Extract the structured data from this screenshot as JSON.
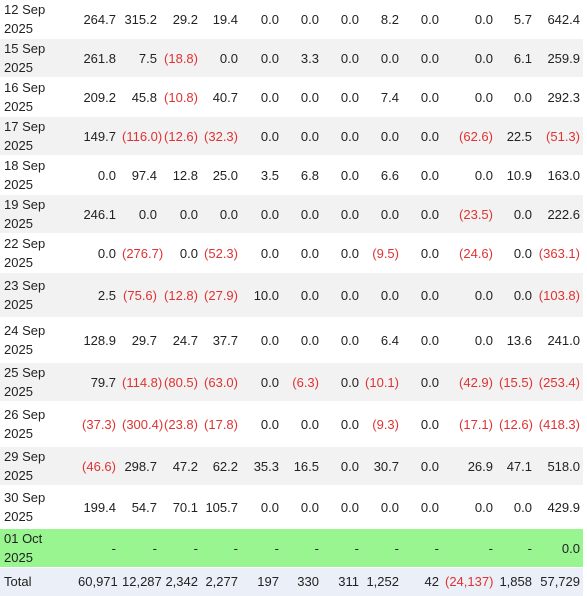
{
  "rows": [
    {
      "date": "12 Sep 2025",
      "values": [
        "264.7",
        "315.2",
        "29.2",
        "19.4",
        "0.0",
        "0.0",
        "0.0",
        "8.2",
        "0.0",
        "0.0",
        "5.7",
        "642.4"
      ]
    },
    {
      "date": "15 Sep 2025",
      "values": [
        "261.8",
        "7.5",
        "(18.8)",
        "0.0",
        "0.0",
        "3.3",
        "0.0",
        "0.0",
        "0.0",
        "0.0",
        "6.1",
        "259.9"
      ]
    },
    {
      "date": "16 Sep 2025",
      "values": [
        "209.2",
        "45.8",
        "(10.8)",
        "40.7",
        "0.0",
        "0.0",
        "0.0",
        "7.4",
        "0.0",
        "0.0",
        "0.0",
        "292.3"
      ]
    },
    {
      "date": "17 Sep 2025",
      "values": [
        "149.7",
        "(116.0)",
        "(12.6)",
        "(32.3)",
        "0.0",
        "0.0",
        "0.0",
        "0.0",
        "0.0",
        "(62.6)",
        "22.5",
        "(51.3)"
      ]
    },
    {
      "date": "18 Sep 2025",
      "values": [
        "0.0",
        "97.4",
        "12.8",
        "25.0",
        "3.5",
        "6.8",
        "0.0",
        "6.6",
        "0.0",
        "0.0",
        "10.9",
        "163.0"
      ]
    },
    {
      "date": "19 Sep 2025",
      "values": [
        "246.1",
        "0.0",
        "0.0",
        "0.0",
        "0.0",
        "0.0",
        "0.0",
        "0.0",
        "0.0",
        "(23.5)",
        "0.0",
        "222.6"
      ]
    },
    {
      "date": "22 Sep 2025",
      "values": [
        "0.0",
        "(276.7)",
        "0.0",
        "(52.3)",
        "0.0",
        "0.0",
        "0.0",
        "(9.5)",
        "0.0",
        "(24.6)",
        "0.0",
        "(363.1)"
      ]
    },
    {
      "date": "23 Sep 2025",
      "values": [
        "2.5",
        "(75.6)",
        "(12.8)",
        "(27.9)",
        "10.0",
        "0.0",
        "0.0",
        "0.0",
        "0.0",
        "0.0",
        "0.0",
        "(103.8)"
      ]
    },
    {
      "date": "24 Sep 2025",
      "values": [
        "128.9",
        "29.7",
        "24.7",
        "37.7",
        "0.0",
        "0.0",
        "0.0",
        "6.4",
        "0.0",
        "0.0",
        "13.6",
        "241.0"
      ]
    },
    {
      "date": "25 Sep 2025",
      "values": [
        "79.7",
        "(114.8)",
        "(80.5)",
        "(63.0)",
        "0.0",
        "(6.3)",
        "0.0",
        "(10.1)",
        "0.0",
        "(42.9)",
        "(15.5)",
        "(253.4)"
      ]
    },
    {
      "date": "26 Sep 2025",
      "values": [
        "(37.3)",
        "(300.4)",
        "(23.8)",
        "(17.8)",
        "0.0",
        "0.0",
        "0.0",
        "(9.3)",
        "0.0",
        "(17.1)",
        "(12.6)",
        "(418.3)"
      ]
    },
    {
      "date": "29 Sep 2025",
      "values": [
        "(46.6)",
        "298.7",
        "47.2",
        "62.2",
        "35.3",
        "16.5",
        "0.0",
        "30.7",
        "0.0",
        "26.9",
        "47.1",
        "518.0"
      ]
    },
    {
      "date": "30 Sep 2025",
      "values": [
        "199.4",
        "54.7",
        "70.1",
        "105.7",
        "0.0",
        "0.0",
        "0.0",
        "0.0",
        "0.0",
        "0.0",
        "0.0",
        "429.9"
      ]
    },
    {
      "date": "01 Oct 2025",
      "values": [
        "-",
        "-",
        "-",
        "-",
        "-",
        "-",
        "-",
        "-",
        "-",
        "-",
        "-",
        "0.0"
      ]
    }
  ],
  "total": {
    "label": "Total",
    "values": [
      "60,971",
      "12,287",
      "2,342",
      "2,277",
      "197",
      "330",
      "311",
      "1,252",
      "42",
      "(24,137)",
      "1,858",
      "57,729"
    ]
  },
  "highlight_row_color": "#99f58f",
  "negative_color": "#e03232"
}
